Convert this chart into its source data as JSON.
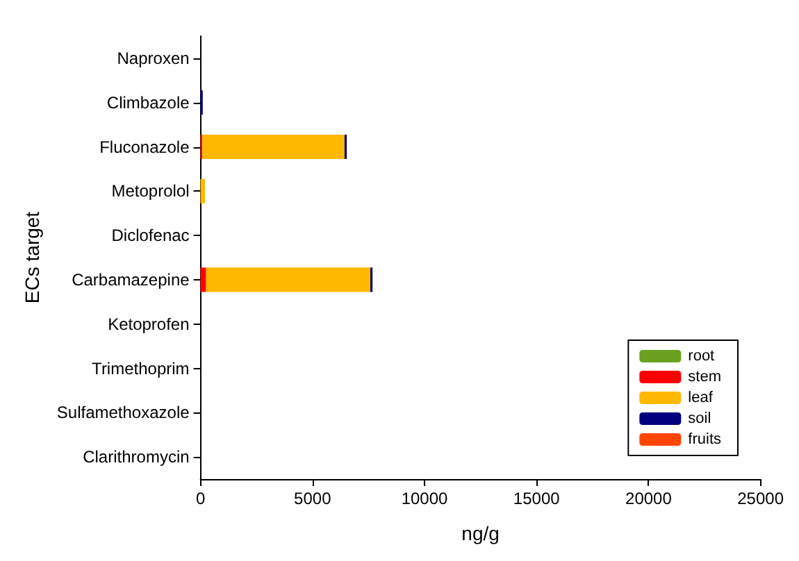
{
  "chart_data": {
    "type": "bar",
    "orientation": "horizontal",
    "stacked": true,
    "xlabel": "ng/g",
    "ylabel": "ECs target",
    "categories": [
      "Naproxen",
      "Climbazole",
      "Fluconazole",
      "Metoprolol",
      "Diclofenac",
      "Carbamazepine",
      "Ketoprofen",
      "Trimethoprim",
      "Sulfamethoxazole",
      "Clarithromycin"
    ],
    "series": [
      {
        "name": "root",
        "color": "#6aa121",
        "values": [
          0,
          0,
          0,
          0,
          0,
          0,
          0,
          0,
          0,
          0
        ]
      },
      {
        "name": "stem",
        "color": "#ff0000",
        "values": [
          0,
          0,
          80,
          0,
          0,
          250,
          0,
          0,
          0,
          0
        ]
      },
      {
        "name": "leaf",
        "color": "#ffb800",
        "values": [
          0,
          0,
          6350,
          200,
          0,
          7330,
          0,
          0,
          0,
          0
        ]
      },
      {
        "name": "soil",
        "color": "#000080",
        "values": [
          0,
          100,
          100,
          0,
          0,
          100,
          0,
          0,
          0,
          0
        ]
      },
      {
        "name": "fruits",
        "color": "#ff4500",
        "values": [
          0,
          0,
          0,
          0,
          0,
          0,
          0,
          0,
          0,
          0
        ]
      }
    ],
    "xlim": [
      0,
      25000
    ],
    "xticks": [
      0,
      5000,
      10000,
      15000,
      20000,
      25000
    ],
    "grid": false,
    "legend": "bottom right"
  }
}
